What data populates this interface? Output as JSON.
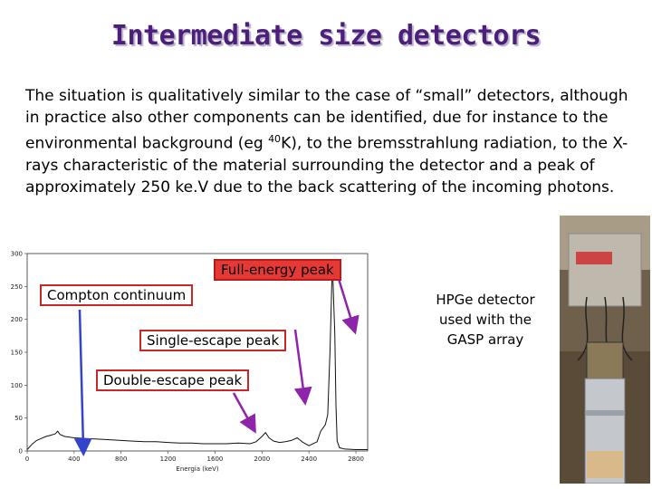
{
  "title": "Intermediate size detectors",
  "paragraph": {
    "before_sup": "The situation is qualitatively similar to the case of “small” detectors, although in practice also other components can be identified, due for instance to the environmental background (eg ",
    "sup": "40",
    "after_sup": "K), to the bremsstrahlung radiation, to the X-rays characteristic of the material surrounding the detector and a peak of approximately 250 ke.V due to the back scattering of the incoming photons."
  },
  "callouts": {
    "full_energy": "Full-energy peak",
    "compton": "Compton continuum",
    "single_escape": "Single-escape peak",
    "double_escape": "Double-escape peak"
  },
  "photo_caption": "HPGe detector used with the GASP array",
  "colors": {
    "title": "#4b1f7a",
    "callout_border": "#c62828",
    "callout_fill": "#e53935",
    "arrow_compton": "#3344cc",
    "arrow_peaks": "#8e24aa"
  },
  "chart_data": {
    "type": "line",
    "xlabel": "Energia (keV)",
    "ylabel": "",
    "xlim": [
      0,
      2900
    ],
    "ylim": [
      0,
      300
    ],
    "x_ticks": [
      0,
      400,
      800,
      1200,
      1600,
      2000,
      2400,
      2800
    ],
    "y_ticks": [
      0,
      50,
      100,
      150,
      200,
      250,
      300
    ],
    "series": [
      {
        "x": [
          0,
          40,
          80,
          120,
          160,
          200,
          240,
          260,
          280,
          320,
          360,
          400,
          500,
          600,
          700,
          800,
          900,
          1000,
          1100,
          1200,
          1300,
          1400,
          1500,
          1600,
          1700,
          1800,
          1900,
          1950,
          2000,
          2030,
          2060,
          2100,
          2150,
          2200,
          2250,
          2300,
          2350,
          2400,
          2470,
          2500,
          2540,
          2560,
          2580,
          2600,
          2610,
          2620,
          2630,
          2640,
          2660,
          2700,
          2800,
          2900
        ],
        "y": [
          2,
          10,
          16,
          19,
          22,
          24,
          26,
          30,
          25,
          22,
          21,
          20,
          19,
          18,
          17,
          16,
          15,
          14,
          14,
          13,
          12,
          12,
          11,
          11,
          11,
          12,
          11,
          14,
          22,
          28,
          20,
          15,
          13,
          14,
          16,
          20,
          13,
          8,
          14,
          30,
          40,
          55,
          155,
          290,
          230,
          180,
          70,
          15,
          5,
          3,
          2,
          2
        ]
      }
    ]
  }
}
